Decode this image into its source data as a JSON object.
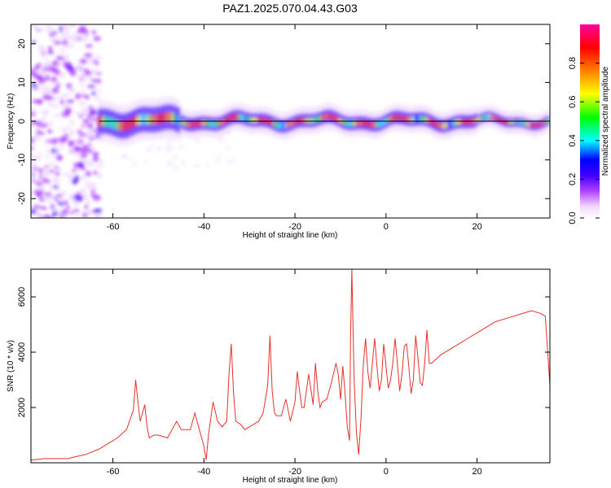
{
  "figure": {
    "title": "PAZ1.2025.070.04.43.G03"
  },
  "chart_data": [
    {
      "type": "heatmap",
      "name": "spectrogram",
      "xlabel": "Height of straight line (km)",
      "ylabel": "Frequency (Hz)",
      "xlim": [
        -78,
        36
      ],
      "ylim": [
        -25,
        25
      ],
      "xticks": [
        -60,
        -40,
        -20,
        0,
        20
      ],
      "yticks": [
        -20,
        -10,
        0,
        10,
        20
      ],
      "colorbar": {
        "label": "Normalized spectral amplitude",
        "range": [
          0,
          1
        ],
        "ticks": [
          0.0,
          0.2,
          0.4,
          0.6,
          0.8
        ],
        "tick_labels": [
          "0.0",
          "0.2",
          "0.4",
          "0.6",
          "0.8"
        ],
        "colors": [
          "#ffffff",
          "#f0d8ff",
          "#b040ff",
          "#4000ff",
          "#0000ff",
          "#00ffff",
          "#00ff00",
          "#ffff00",
          "#ff8000",
          "#ff0000",
          "#ff00a0"
        ]
      },
      "line_color": "#000000"
    },
    {
      "type": "line",
      "name": "snr",
      "xlabel": "Height of straight line (km)",
      "ylabel": "SNR (10 * v/v)",
      "xlim": [
        -78,
        36
      ],
      "ylim": [
        0,
        7000
      ],
      "xticks": [
        -60,
        -40,
        -20,
        0,
        20
      ],
      "yticks": [
        2000,
        4000,
        6000
      ],
      "color": "#e8302a",
      "series": [
        {
          "x": [
            -78,
            -75,
            -70,
            -66,
            -63,
            -61,
            -59,
            -57,
            -55.5,
            -55,
            -54.5,
            -54,
            -53,
            -52.5,
            -52,
            -51,
            -50,
            -48,
            -46,
            -45,
            -43,
            -42,
            -41,
            -40,
            -39.5,
            -39,
            -38,
            -37,
            -36,
            -35,
            -34.5,
            -34,
            -33.5,
            -33,
            -32,
            -31,
            -30,
            -29,
            -28,
            -27,
            -26,
            -25.5,
            -25,
            -24.5,
            -24,
            -23,
            -22,
            -21,
            -20,
            -19.5,
            -19,
            -18.5,
            -18,
            -17,
            -16,
            -15.5,
            -15,
            -14.5,
            -14,
            -13,
            -12,
            -11,
            -10.5,
            -10,
            -9.5,
            -9,
            -8.5,
            -8,
            -7.8,
            -7.5,
            -7.2,
            -7,
            -6.5,
            -6,
            -5.5,
            -5,
            -4.5,
            -4,
            -3.5,
            -3,
            -2.5,
            -2,
            -1.5,
            -1,
            -0.5,
            0,
            0.5,
            1,
            1.5,
            2,
            2.5,
            3,
            3.5,
            4,
            4.5,
            5,
            5.5,
            6,
            6.5,
            7,
            7.5,
            8,
            8.5,
            9,
            9.5,
            10,
            12,
            14,
            16,
            18,
            20,
            22,
            24,
            26,
            28,
            30,
            32,
            34,
            35,
            36
          ],
          "y": [
            100,
            150,
            150,
            300,
            500,
            700,
            900,
            1200,
            1900,
            3000,
            2200,
            1500,
            2100,
            1300,
            900,
            1000,
            1000,
            900,
            1500,
            1200,
            1200,
            1800,
            1200,
            600,
            100,
            1000,
            2200,
            1500,
            1300,
            1500,
            3200,
            4300,
            2500,
            1500,
            1400,
            1200,
            1300,
            1400,
            1500,
            1800,
            2800,
            4600,
            2600,
            1800,
            1700,
            1700,
            2300,
            1500,
            2200,
            3300,
            2600,
            2000,
            2000,
            3200,
            2100,
            3600,
            2600,
            2000,
            2200,
            2300,
            2900,
            3600,
            3200,
            2300,
            3500,
            2500,
            1300,
            800,
            4500,
            7000,
            4500,
            3000,
            1100,
            300,
            1600,
            3500,
            4500,
            3300,
            2700,
            3600,
            4500,
            3500,
            2600,
            3000,
            4300,
            3500,
            2700,
            3000,
            3600,
            4500,
            3600,
            2600,
            3200,
            4200,
            4300,
            3500,
            2500,
            3000,
            4600,
            3800,
            2900,
            2800,
            3600,
            4800,
            3600,
            3600,
            3900,
            4100,
            4300,
            4500,
            4700,
            4900,
            5100,
            5200,
            5300,
            5400,
            5500,
            5400,
            5300,
            2800
          ]
        }
      ]
    }
  ]
}
